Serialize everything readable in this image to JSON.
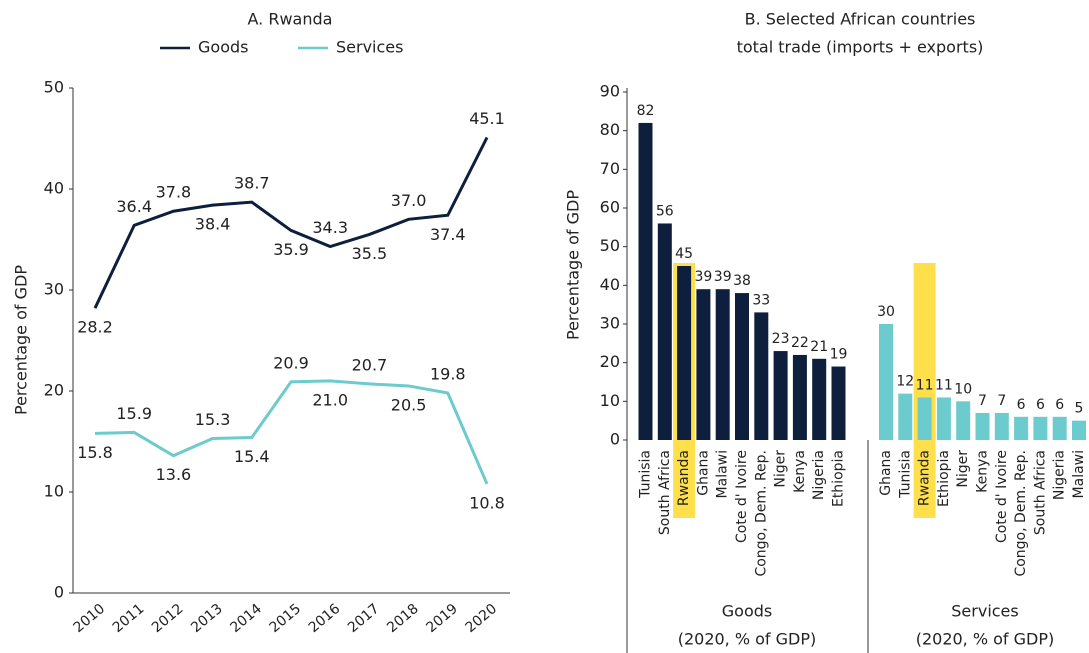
{
  "chart_data": [
    {
      "type": "line",
      "title": "A. Rwanda",
      "ylabel": "Percentage of GDP",
      "x": [
        2010,
        2011,
        2012,
        2013,
        2014,
        2015,
        2016,
        2017,
        2018,
        2019,
        2020
      ],
      "ylim": [
        0,
        50
      ],
      "yticks": [
        0,
        10,
        20,
        30,
        40,
        50
      ],
      "series": [
        {
          "name": "Goods",
          "color": "#0d1f3c",
          "values": [
            28.2,
            36.4,
            37.8,
            38.4,
            38.7,
            35.9,
            34.3,
            35.5,
            37.0,
            37.4,
            45.1
          ],
          "value_labels": [
            "28.2",
            "36.4",
            "37.8",
            "38.4",
            "38.7",
            "35.9",
            "34.3",
            "35.5",
            "37.0",
            "37.4",
            "45.1"
          ]
        },
        {
          "name": "Services",
          "color": "#6ccbcc",
          "values": [
            15.8,
            15.9,
            13.6,
            15.3,
            15.4,
            20.9,
            21.0,
            20.7,
            20.5,
            19.8,
            10.8
          ],
          "value_labels": [
            "15.8",
            "15.9",
            "13.6",
            "15.3",
            "15.4",
            "20.9",
            "21.0",
            "20.7",
            "20.5",
            "19.8",
            "10.8"
          ]
        }
      ]
    },
    {
      "type": "grouped_bar",
      "title": "B. Selected African countries",
      "subtitle": "total trade (imports + exports)",
      "ylabel": "Percentage of GDP",
      "ylim": [
        0,
        90
      ],
      "yticks": [
        0,
        10,
        20,
        30,
        40,
        50,
        60,
        70,
        80,
        90
      ],
      "highlight_color": "#ffe04b",
      "groups": [
        {
          "name": "Goods",
          "note": "(2020, % of GDP)",
          "color": "#0d1f3c",
          "highlight_index": 2,
          "categories": [
            "Tunisia",
            "South Africa",
            "Rwanda",
            "Ghana",
            "Malawi",
            "Cote d' Ivoire",
            "Congo, Dem. Rep.",
            "Niger",
            "Kenya",
            "Nigeria",
            "Ethiopia"
          ],
          "values": [
            82,
            56,
            45,
            39,
            39,
            38,
            33,
            23,
            22,
            21,
            19
          ]
        },
        {
          "name": "Services",
          "note": "(2020, % of GDP)",
          "color": "#6ccbcc",
          "highlight_index": 2,
          "categories": [
            "Ghana",
            "Tunisia",
            "Rwanda",
            "Ethiopia",
            "Niger",
            "Kenya",
            "Cote d' Ivoire",
            "Congo, Dem. Rep.",
            "South Africa",
            "Nigeria",
            "Malawi"
          ],
          "values": [
            30,
            12,
            11,
            11,
            10,
            7,
            7,
            6,
            6,
            6,
            5
          ]
        }
      ]
    }
  ]
}
